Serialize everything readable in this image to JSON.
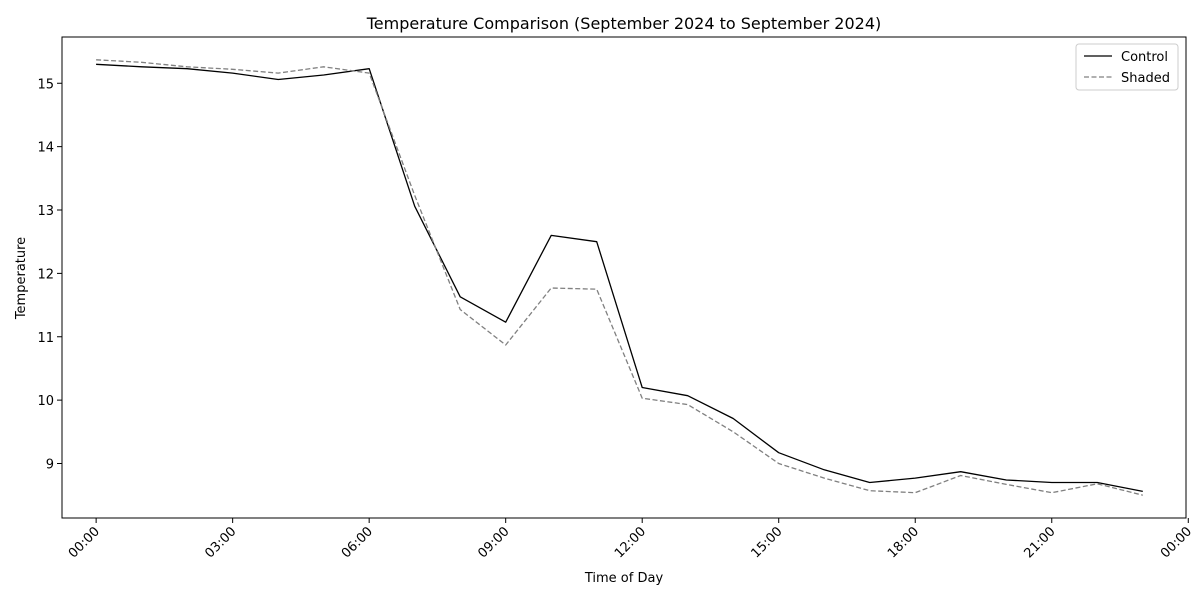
{
  "chart_data": {
    "type": "line",
    "title": "Temperature Comparison (September 2024 to September 2024)",
    "xlabel": "Time of Day",
    "ylabel": "Temperature",
    "xlim": [
      -0.75,
      23.95
    ],
    "ylim": [
      8.14,
      15.73
    ],
    "x_tick_values": [
      0,
      3,
      6,
      9,
      12,
      15,
      18,
      21,
      24
    ],
    "x_tick_labels": [
      "00:00",
      "03:00",
      "06:00",
      "09:00",
      "12:00",
      "15:00",
      "18:00",
      "21:00",
      "00:00"
    ],
    "y_tick_values": [
      9,
      10,
      11,
      12,
      13,
      14,
      15
    ],
    "y_tick_labels": [
      "9",
      "10",
      "11",
      "12",
      "13",
      "14",
      "15"
    ],
    "x": [
      0,
      1,
      2,
      3,
      4,
      5,
      6,
      7,
      8,
      9,
      10,
      11,
      12,
      13,
      14,
      15,
      16,
      17,
      18,
      19,
      20,
      21,
      22,
      23
    ],
    "series": [
      {
        "name": "Control",
        "color": "#000000",
        "dash": "solid",
        "values": [
          15.3,
          15.26,
          15.23,
          15.16,
          15.06,
          15.13,
          15.23,
          13.06,
          11.63,
          11.23,
          12.6,
          12.5,
          10.2,
          10.07,
          9.71,
          9.17,
          8.9,
          8.7,
          8.77,
          8.87,
          8.74,
          8.7,
          8.7,
          8.56
        ]
      },
      {
        "name": "Shaded",
        "color": "#808080",
        "dash": "dashed",
        "values": [
          15.37,
          15.33,
          15.26,
          15.22,
          15.16,
          15.26,
          15.16,
          13.23,
          11.43,
          10.87,
          11.77,
          11.75,
          10.03,
          9.93,
          9.5,
          9.0,
          8.77,
          8.57,
          8.54,
          8.81,
          8.67,
          8.54,
          8.68,
          8.5
        ]
      }
    ],
    "grid": false,
    "legend_position": "top-right"
  }
}
